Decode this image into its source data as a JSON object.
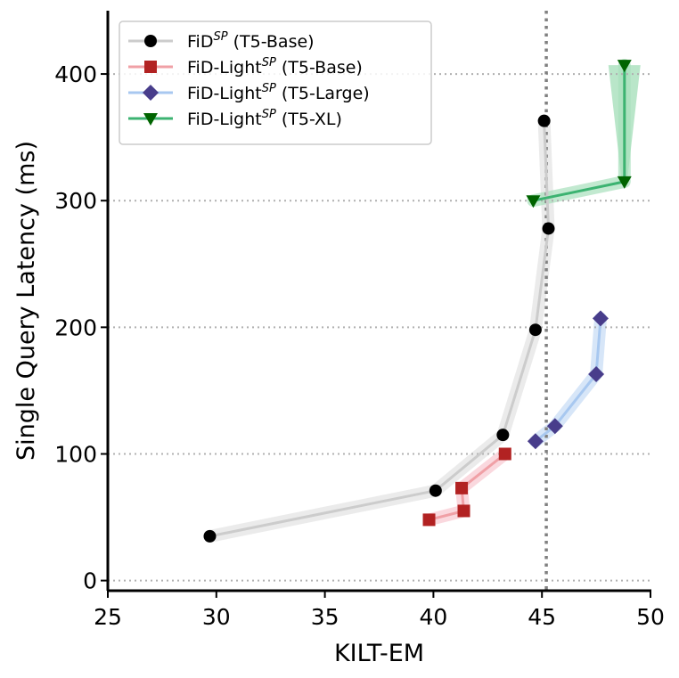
{
  "chart_data": {
    "type": "line",
    "title": "",
    "xlabel": "KILT-EM",
    "ylabel": "Single Query Latency (ms)",
    "xlim": [
      25,
      50
    ],
    "ylim": [
      -8,
      450
    ],
    "xticks": [
      25,
      30,
      35,
      40,
      45,
      50
    ],
    "yticks": [
      0,
      100,
      200,
      300,
      400
    ],
    "grid": "horizontal dotted at y ticks",
    "legend_position": "top-left",
    "vertical_reference_line": {
      "x": 45.2,
      "style": "dotted",
      "color": "#808080"
    },
    "series": [
      {
        "name": "FiD^SP (T5-Base)",
        "name_main": "FiD",
        "name_sup": "SP",
        "name_rest": " (T5-Base)",
        "marker": "circle",
        "line_color": "#cccccc",
        "marker_color": "#000000",
        "band_color": "#e3e3e3",
        "points": [
          {
            "x": 29.7,
            "y": 35
          },
          {
            "x": 40.1,
            "y": 71
          },
          {
            "x": 43.2,
            "y": 115
          },
          {
            "x": 44.7,
            "y": 198
          },
          {
            "x": 45.3,
            "y": 278
          },
          {
            "x": 45.1,
            "y": 363
          }
        ]
      },
      {
        "name": "FiD-Light^SP (T5-Base)",
        "name_main": "FiD-Light",
        "name_sup": "SP",
        "name_rest": " (T5-Base)",
        "marker": "square",
        "line_color": "#f0a0a6",
        "marker_color": "#b22222",
        "band_color": "#f8c8d0",
        "points": [
          {
            "x": 39.8,
            "y": 48
          },
          {
            "x": 41.4,
            "y": 55
          },
          {
            "x": 41.3,
            "y": 73
          },
          {
            "x": 43.3,
            "y": 100
          }
        ]
      },
      {
        "name": "FiD-Light^SP (T5-Large)",
        "name_main": "FiD-Light",
        "name_sup": "SP",
        "name_rest": " (T5-Large)",
        "marker": "diamond",
        "line_color": "#a8c8f0",
        "marker_color": "#483d8b",
        "band_color": "#c6dcf5",
        "points": [
          {
            "x": 44.7,
            "y": 110
          },
          {
            "x": 45.6,
            "y": 122
          },
          {
            "x": 47.5,
            "y": 163
          },
          {
            "x": 47.7,
            "y": 207
          }
        ]
      },
      {
        "name": "FiD-Light^SP (T5-XL)",
        "name_main": "FiD-Light",
        "name_sup": "SP",
        "name_rest": " (T5-XL)",
        "marker": "triangle-down",
        "line_color": "#3cb371",
        "marker_color": "#006400",
        "band_color": "#a8e0bc",
        "points": [
          {
            "x": 44.6,
            "y": 300
          },
          {
            "x": 48.8,
            "y": 315
          },
          {
            "x": 48.8,
            "y": 407
          }
        ]
      }
    ]
  }
}
